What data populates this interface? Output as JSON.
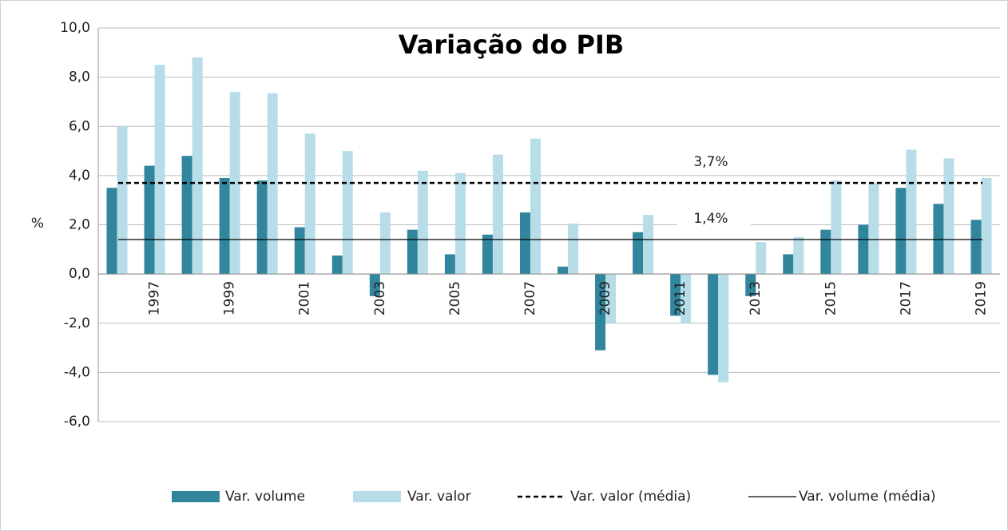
{
  "chart_data": {
    "type": "bar",
    "title": "Variação do PIB",
    "y_label": "%",
    "categories": [
      null,
      "1997",
      null,
      "1999",
      null,
      "2001",
      null,
      "2003",
      null,
      "2005",
      null,
      "2007",
      null,
      "2009",
      null,
      "2011",
      null,
      "2013",
      null,
      "2015",
      null,
      "2017",
      null,
      "2019"
    ],
    "series": [
      {
        "name": "Var. volume",
        "color": "#31859c",
        "values": [
          3.5,
          4.4,
          4.8,
          3.9,
          3.8,
          1.9,
          0.75,
          -0.9,
          1.8,
          0.8,
          1.6,
          2.5,
          0.3,
          -3.1,
          1.7,
          -1.7,
          -4.1,
          -0.9,
          0.8,
          1.8,
          2.0,
          3.5,
          2.85,
          2.2
        ]
      },
      {
        "name": "Var. valor",
        "color": "#b7dde8",
        "values": [
          6.0,
          8.5,
          8.8,
          7.4,
          7.35,
          5.7,
          5.0,
          2.5,
          4.2,
          4.1,
          4.85,
          5.5,
          2.05,
          -2.0,
          2.4,
          -2.0,
          -4.4,
          1.3,
          1.5,
          3.8,
          3.7,
          5.05,
          4.7,
          3.9
        ]
      }
    ],
    "lines": [
      {
        "name": "Var. valor (média)",
        "color": "#000000",
        "dashed": true,
        "value": 3.7,
        "value_label": "3,7%"
      },
      {
        "name": "Var. volume (média)",
        "color": "#000000",
        "dashed": false,
        "value": 1.4,
        "value_label": "1,4%"
      }
    ],
    "ylim": [
      -6,
      10
    ],
    "yticks": [
      {
        "value": -6,
        "label": "-6,0"
      },
      {
        "value": -4,
        "label": "-4,0"
      },
      {
        "value": -2,
        "label": "-2,0"
      },
      {
        "value": 0,
        "label": "0,0"
      },
      {
        "value": 2,
        "label": "2,0"
      },
      {
        "value": 4,
        "label": "4,0"
      },
      {
        "value": 6,
        "label": "6,0"
      },
      {
        "value": 8,
        "label": "8,0"
      },
      {
        "value": 10,
        "label": "10,0"
      }
    ],
    "grid": true,
    "legend": "bottom"
  }
}
